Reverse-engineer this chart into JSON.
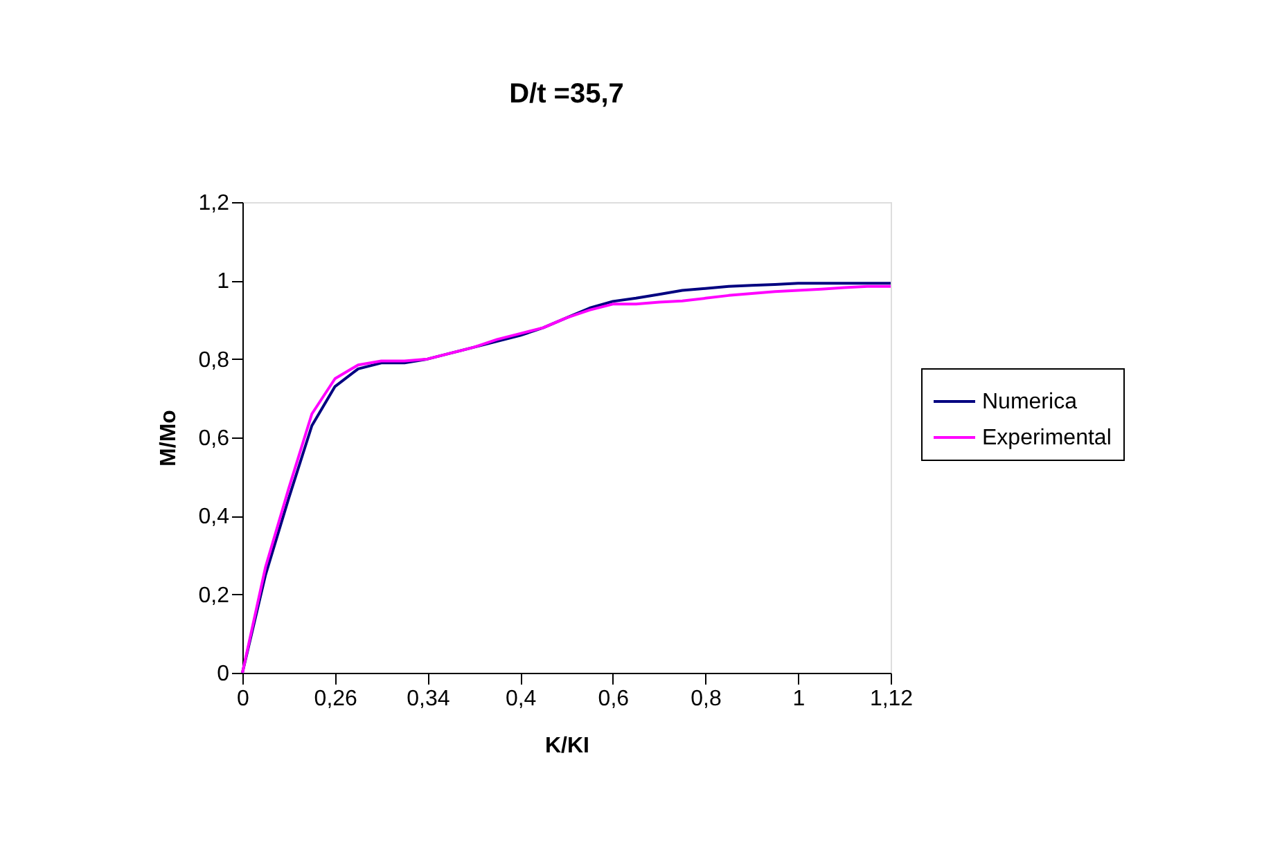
{
  "chart_data": {
    "type": "line",
    "title": "D/t =35,7",
    "xlabel": "K/KI",
    "ylabel": "M/Mo",
    "categories": [
      "0",
      null,
      null,
      null,
      "0,26",
      null,
      null,
      null,
      "0,34",
      null,
      null,
      null,
      "0,4",
      null,
      null,
      null,
      "0,6",
      null,
      null,
      null,
      "0,8",
      null,
      null,
      null,
      "1",
      null,
      null,
      null,
      "1,12"
    ],
    "series": [
      {
        "name": "Numerica",
        "color": "#000080",
        "values": [
          0,
          0.25,
          0.445,
          0.63,
          0.73,
          0.775,
          0.79,
          0.79,
          0.8,
          0.815,
          0.83,
          0.845,
          0.86,
          0.88,
          0.905,
          0.93,
          0.947,
          0.955,
          0.965,
          0.975,
          0.98,
          0.985,
          0.988,
          0.99,
          0.993,
          0.993,
          0.993,
          0.993,
          0.993
        ]
      },
      {
        "name": "Experimental",
        "color": "#ff00ff",
        "values": [
          0,
          0.27,
          0.47,
          0.66,
          0.75,
          0.785,
          0.795,
          0.795,
          0.8,
          0.815,
          0.83,
          0.85,
          0.865,
          0.88,
          0.905,
          0.925,
          0.94,
          0.94,
          0.945,
          0.948,
          0.955,
          0.962,
          0.967,
          0.972,
          0.975,
          0.978,
          0.982,
          0.985,
          0.985
        ]
      }
    ],
    "ylim": [
      0,
      1.2
    ],
    "yticks": [
      0,
      {
        "value": 0.2,
        "label": "0,2"
      },
      {
        "value": 0.4,
        "label": "0,4"
      },
      {
        "value": 0.6,
        "label": "0,6"
      },
      {
        "value": 0.8,
        "label": "0,8"
      },
      1,
      {
        "value": 1.2,
        "label": "1,2"
      }
    ],
    "grid": false,
    "legend": "right",
    "marker": "none",
    "line_style": "solid"
  }
}
